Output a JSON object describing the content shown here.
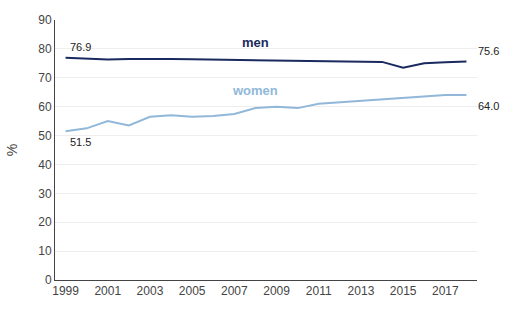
{
  "chart_data": {
    "type": "line",
    "x": [
      1999,
      2000,
      2001,
      2002,
      2003,
      2004,
      2005,
      2006,
      2007,
      2008,
      2009,
      2010,
      2011,
      2012,
      2013,
      2014,
      2015,
      2016,
      2017,
      2018
    ],
    "series": [
      {
        "name": "men",
        "color": "#1a2a5e",
        "values": [
          76.9,
          76.5,
          76.3,
          76.5,
          76.6,
          76.5,
          76.4,
          76.3,
          76.3,
          76.2,
          76.1,
          76.0,
          76.0,
          75.9,
          75.8,
          75.5,
          73.5,
          75.0,
          75.4,
          75.6
        ]
      },
      {
        "name": "women",
        "color": "#91b8d9",
        "values": [
          51.5,
          52.5,
          55.0,
          53.5,
          56.5,
          57.0,
          56.5,
          56.8,
          57.5,
          59.5,
          60.0,
          59.5,
          61.0,
          61.5,
          62.0,
          62.5,
          63.0,
          63.5,
          64.0,
          64.0
        ]
      }
    ],
    "annotations": [
      {
        "text": "76.9",
        "x": 1999,
        "y": 76.9
      },
      {
        "text": "51.5",
        "x": 1999,
        "y": 51.5
      },
      {
        "text": "75.6",
        "x": 2018,
        "y": 75.6
      },
      {
        "text": "64.0",
        "x": 2018,
        "y": 64.0
      }
    ],
    "ylabel": "%",
    "xlim": [
      1998.5,
      2018.5
    ],
    "xticks": [
      1999,
      2001,
      2003,
      2005,
      2007,
      2009,
      2011,
      2013,
      2015,
      2017
    ],
    "ylim": [
      0,
      90
    ],
    "yticks": [
      0,
      10,
      20,
      30,
      40,
      50,
      60,
      70,
      80,
      90
    ],
    "grid": true
  }
}
